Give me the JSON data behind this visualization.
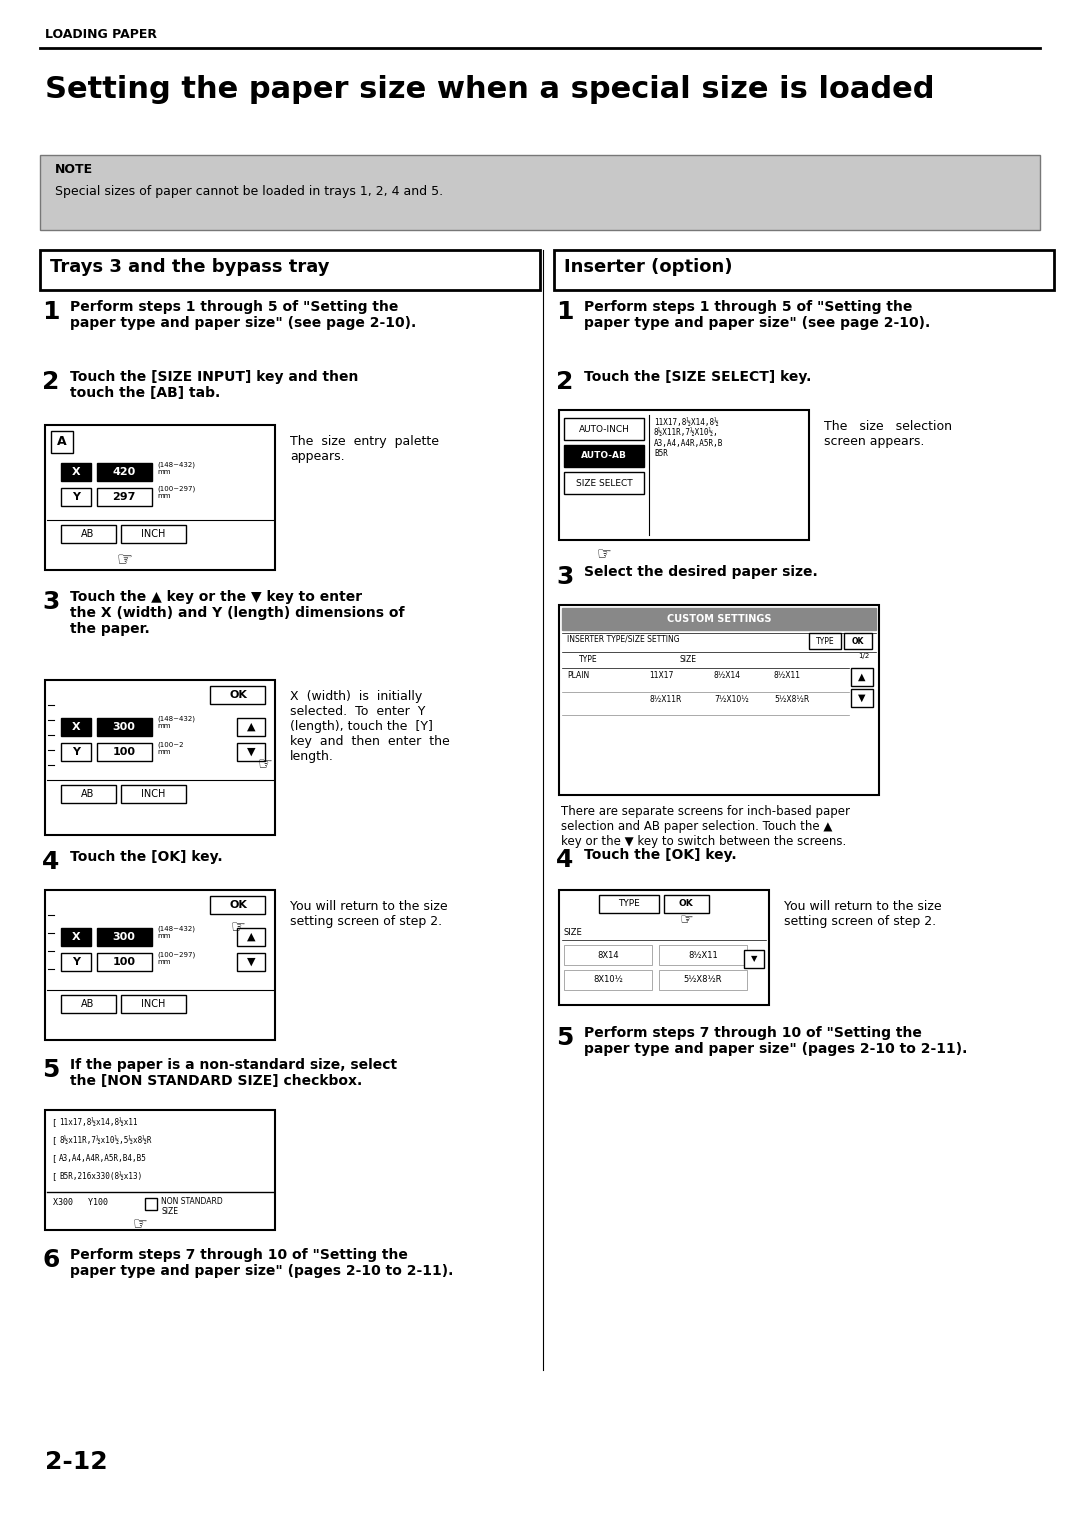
{
  "page_title": "Setting the paper size when a special size is loaded",
  "header_text": "LOADING PAPER",
  "page_number": "2-12",
  "note_text": "Special sizes of paper cannot be loaded in trays 1, 2, 4 and 5.",
  "left_section_title": "Trays 3 and the bypass tray",
  "right_section_title": "Inserter (option)",
  "bg_color": "#ffffff"
}
